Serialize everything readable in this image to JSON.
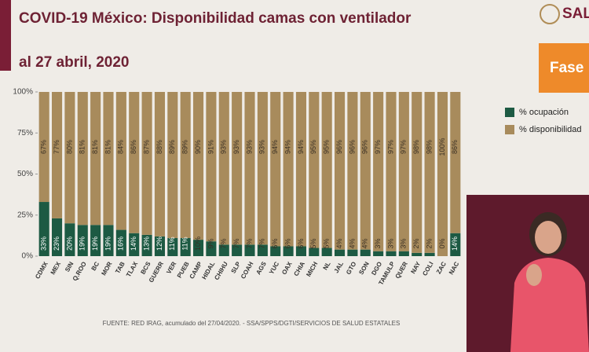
{
  "header": {
    "logo": "SAL",
    "phase": "Fase"
  },
  "chart_data": {
    "type": "stacked_bar",
    "title": "COVID-19 México: Disponibilidad camas con ventilador",
    "subtitle": "al 27 abril, 2020",
    "source": "FUENTE: RED IRAG, acumulado del 27/04/2020. - SSA/SPPS/DGTI/SERVICIOS DE SALUD ESTATALES",
    "categories": [
      "CDMX",
      "MEX",
      "SIN",
      "Q.ROO",
      "BC",
      "MOR",
      "TAB",
      "TLAX",
      "BCS",
      "GUERR",
      "VER",
      "PUEB",
      "CAMP",
      "HIDAL",
      "CHIHU",
      "SLP",
      "COAH",
      "AGS",
      "YUC",
      "OAX",
      "CHIA",
      "MICH",
      "NL",
      "JAL",
      "GTO",
      "SON",
      "DGO",
      "TAMULP",
      "QUER",
      "NAY",
      "COLI",
      "ZAC",
      "NAC"
    ],
    "series": [
      {
        "name": "% ocupación",
        "color": "#1d5a43",
        "values": [
          33,
          23,
          20,
          19,
          19,
          19,
          16,
          14,
          13,
          12,
          11,
          11,
          10,
          9,
          7,
          7,
          7,
          7,
          6,
          6,
          6,
          5,
          5,
          4,
          4,
          4,
          3,
          3,
          3,
          2,
          2,
          0,
          14
        ],
        "value_labels": [
          "33%",
          "23%",
          "20%",
          "19%",
          "19%",
          "19%",
          "16%",
          "14%",
          "13%",
          "12%",
          "11%",
          "11%",
          "10%",
          "9%",
          "7%",
          "7%",
          "7%",
          "7%",
          "6%",
          "6%",
          "6%",
          "5%",
          "5%",
          "4%",
          "4%",
          "4%",
          "3%",
          "3%",
          "3%",
          "2%",
          "2%",
          "0%",
          "14%"
        ]
      },
      {
        "name": "% disponibilidad",
        "color": "#a88b5c",
        "values": [
          67,
          77,
          80,
          81,
          81,
          81,
          84,
          86,
          87,
          88,
          89,
          89,
          90,
          91,
          93,
          93,
          93,
          93,
          94,
          94,
          94,
          95,
          95,
          96,
          96,
          96,
          97,
          97,
          97,
          98,
          98,
          100,
          86
        ],
        "value_labels": [
          "67%",
          "77%",
          "80%",
          "81%",
          "81%",
          "81%",
          "84%",
          "86%",
          "87%",
          "88%",
          "89%",
          "89%",
          "90%",
          "91%",
          "93%",
          "93%",
          "93%",
          "93%",
          "94%",
          "94%",
          "94%",
          "95%",
          "95%",
          "96%",
          "96%",
          "96%",
          "97%",
          "97%",
          "97%",
          "98%",
          "98%",
          "100%",
          "86%"
        ]
      }
    ],
    "ylim": [
      0,
      100
    ],
    "yticks": [
      {
        "value": 0,
        "label": "0%"
      },
      {
        "value": 25,
        "label": "25%"
      },
      {
        "value": 50,
        "label": "50%"
      },
      {
        "value": 75,
        "label": "75%"
      },
      {
        "value": 100,
        "label": "100%"
      }
    ],
    "legend": "right"
  }
}
